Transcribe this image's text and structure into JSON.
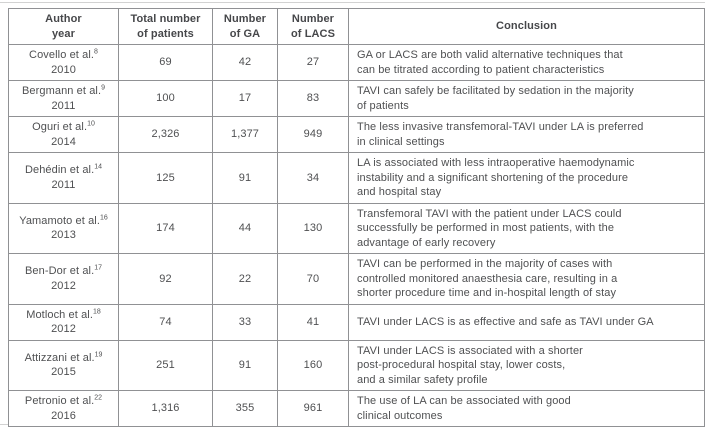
{
  "page": {
    "background": "#ffffff",
    "border_color": "#909194",
    "text_color": "#4f5052",
    "header_text_color": "#46474a"
  },
  "table": {
    "headers": [
      {
        "label": "Author\nyear"
      },
      {
        "label": "Total number\nof patients"
      },
      {
        "label": "Number\nof GA"
      },
      {
        "label": "Number\nof LACS"
      },
      {
        "label": "Conclusion"
      }
    ],
    "rows": [
      {
        "author": "Covello et al.",
        "ref": "8",
        "year": "2010",
        "patients": "69",
        "ga": "42",
        "lacs": "27",
        "conclusion": "GA or LACS are both valid alternative techniques that\ncan be titrated according to patient characteristics"
      },
      {
        "author": "Bergmann et al.",
        "ref": "9",
        "year": "2011",
        "patients": "100",
        "ga": "17",
        "lacs": "83",
        "conclusion": "TAVI can safely be facilitated by sedation in the majority\nof patients"
      },
      {
        "author": "Oguri et al.",
        "ref": "10",
        "year": "2014",
        "patients": "2,326",
        "ga": "1,377",
        "lacs": "949",
        "conclusion": "The less invasive transfemoral-TAVI under LA is preferred\nin clinical settings"
      },
      {
        "author": "Dehédin et al.",
        "ref": "14",
        "year": "2011",
        "patients": "125",
        "ga": "91",
        "lacs": "34",
        "conclusion": "LA is associated with less intraoperative haemodynamic\ninstability and a significant shortening of the procedure\nand hospital stay"
      },
      {
        "author": "Yamamoto et al.",
        "ref": "16",
        "year": "2013",
        "patients": "174",
        "ga": "44",
        "lacs": "130",
        "conclusion": "Transfemoral TAVI with the patient under LACS could\nsuccessfully be performed in most patients, with the\nadvantage of early recovery"
      },
      {
        "author": "Ben-Dor et al.",
        "ref": "17",
        "year": "2012",
        "patients": "92",
        "ga": "22",
        "lacs": "70",
        "conclusion": "TAVI can be performed in the majority of cases with\ncontrolled monitored anaesthesia care, resulting in a\nshorter procedure time and in-hospital length of stay"
      },
      {
        "author": "Motloch et al.",
        "ref": "18",
        "year": "2012",
        "patients": "74",
        "ga": "33",
        "lacs": "41",
        "conclusion": "TAVI under LACS is as effective and safe as TAVI under GA"
      },
      {
        "author": "Attizzani et al.",
        "ref": "19",
        "year": "2015",
        "patients": "251",
        "ga": "91",
        "lacs": "160",
        "conclusion": "TAVI under LACS is associated with a shorter\npost-procedural hospital stay, lower costs,\nand a similar safety profile"
      },
      {
        "author": "Petronio et al.",
        "ref": "22",
        "year": "2016",
        "patients": "1,316",
        "ga": "355",
        "lacs": "961",
        "conclusion": "The use of LA can be associated with good\nclinical outcomes"
      }
    ]
  }
}
